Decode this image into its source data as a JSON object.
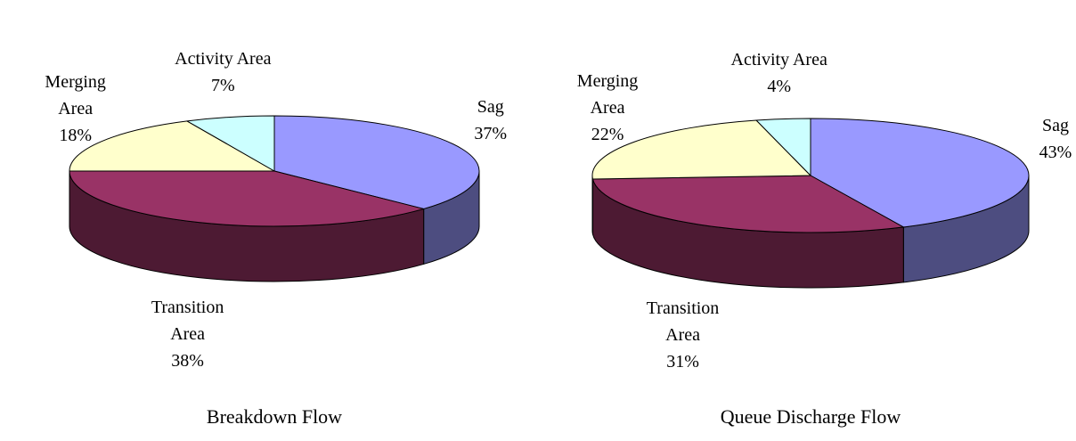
{
  "chart_data": [
    {
      "type": "pie3d",
      "title": "Breakdown Flow",
      "categories": [
        "Sag",
        "Transition Area",
        "Merging Area",
        "Activity Area"
      ],
      "values": [
        37,
        38,
        18,
        7
      ],
      "value_labels": [
        "37%",
        "38%",
        "18%",
        "7%"
      ],
      "colors": [
        "#9999ff",
        "#993366",
        "#ffffcc",
        "#ccffff"
      ]
    },
    {
      "type": "pie3d",
      "title": "Queue Discharge Flow",
      "categories": [
        "Sag",
        "Transition Area",
        "Merging Area",
        "Activity Area"
      ],
      "values": [
        43,
        31,
        22,
        4
      ],
      "value_labels": [
        "43%",
        "31%",
        "22%",
        "4%"
      ],
      "colors": [
        "#9999ff",
        "#993366",
        "#ffffcc",
        "#ccffff"
      ]
    }
  ]
}
